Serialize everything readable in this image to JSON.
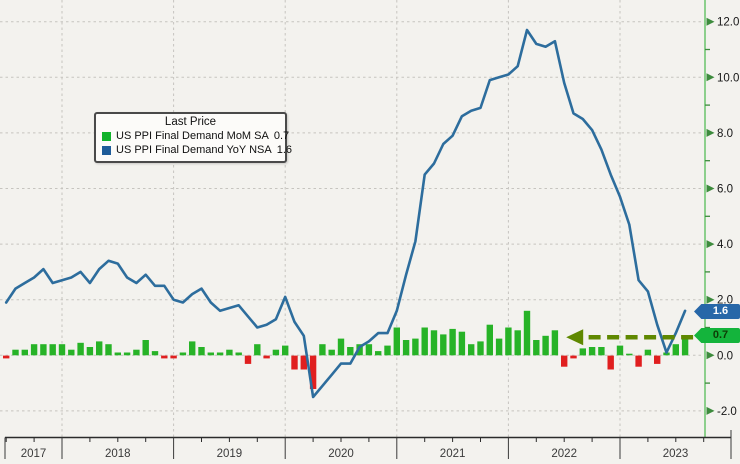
{
  "legend": {
    "title": "Last Price",
    "items": [
      {
        "label": "US PPI Final Demand MoM SA",
        "value": "0.7",
        "swatch": "#12b32c"
      },
      {
        "label": "US PPI Final Demand YoY NSA",
        "value": "1.6",
        "swatch": "#1f5c99"
      }
    ]
  },
  "tags": {
    "yoy": "1.6",
    "mom": "0.7"
  },
  "colors": {
    "background": "#f3f2ee",
    "bar_pos": "#27b327",
    "bar_neg": "#e01f1f",
    "line": "#2d6d9d",
    "arrow": "#5f8800",
    "tag_yoy_bg": "#2767a8",
    "tag_yoy_fg": "#ffffff",
    "tag_mom_bg": "#14b43c",
    "tag_mom_fg": "#0d3d05",
    "right_spine": "#8ccf8c",
    "right_tick": "#3d8b3d"
  },
  "chart_data": {
    "type": "combo",
    "x": {
      "months": [
        "2017-07",
        "2017-08",
        "2017-09",
        "2017-10",
        "2017-11",
        "2017-12",
        "2018-01",
        "2018-02",
        "2018-03",
        "2018-04",
        "2018-05",
        "2018-06",
        "2018-07",
        "2018-08",
        "2018-09",
        "2018-10",
        "2018-11",
        "2018-12",
        "2019-01",
        "2019-02",
        "2019-03",
        "2019-04",
        "2019-05",
        "2019-06",
        "2019-07",
        "2019-08",
        "2019-09",
        "2019-10",
        "2019-11",
        "2019-12",
        "2020-01",
        "2020-02",
        "2020-03",
        "2020-04",
        "2020-05",
        "2020-06",
        "2020-07",
        "2020-08",
        "2020-09",
        "2020-10",
        "2020-11",
        "2020-12",
        "2021-01",
        "2021-02",
        "2021-03",
        "2021-04",
        "2021-05",
        "2021-06",
        "2021-07",
        "2021-08",
        "2021-09",
        "2021-10",
        "2021-11",
        "2021-12",
        "2022-01",
        "2022-02",
        "2022-03",
        "2022-04",
        "2022-05",
        "2022-06",
        "2022-07",
        "2022-08",
        "2022-09",
        "2022-10",
        "2022-11",
        "2022-12",
        "2023-01",
        "2023-02",
        "2023-03",
        "2023-04",
        "2023-05",
        "2023-06",
        "2023-07",
        "2023-08"
      ]
    },
    "year_labels": [
      "2017",
      "2018",
      "2019",
      "2020",
      "2021",
      "2022",
      "2023"
    ],
    "y_axis": {
      "side": "right",
      "tick_values": [
        12,
        10,
        8,
        6,
        4,
        2,
        0,
        -2
      ],
      "tick_labels": [
        "12.0",
        "10.0",
        "8.0",
        "6.0",
        "4.0",
        "2.0",
        "0.0",
        "-2.0"
      ],
      "minor_tick_values": [
        11,
        9,
        7,
        5,
        3,
        1,
        -1
      ],
      "range": [
        -3,
        12.6
      ],
      "grid": "dashed"
    },
    "series": [
      {
        "name": "US PPI Final Demand MoM SA",
        "type": "bar",
        "last": 0.7,
        "values": [
          -0.1,
          0.2,
          0.2,
          0.4,
          0.4,
          0.4,
          0.4,
          0.2,
          0.45,
          0.3,
          0.5,
          0.4,
          0.1,
          0.1,
          0.2,
          0.55,
          0.15,
          -0.1,
          -0.1,
          0.1,
          0.5,
          0.3,
          0.1,
          0.1,
          0.2,
          0.1,
          -0.3,
          0.4,
          -0.1,
          0.2,
          0.35,
          -0.5,
          -0.5,
          -1.2,
          0.4,
          0.2,
          0.6,
          0.3,
          0.4,
          0.4,
          0.15,
          0.35,
          1.0,
          0.55,
          0.6,
          1.0,
          0.9,
          0.75,
          0.95,
          0.85,
          0.4,
          0.5,
          1.1,
          0.6,
          1.0,
          0.9,
          1.6,
          0.55,
          0.7,
          0.9,
          -0.4,
          -0.1,
          0.25,
          0.3,
          0.3,
          -0.5,
          0.35,
          0.0,
          -0.4,
          0.2,
          -0.3,
          0.1,
          0.4,
          0.7
        ]
      },
      {
        "name": "US PPI Final Demand YoY NSA",
        "type": "line",
        "last": 1.6,
        "values": [
          1.9,
          2.4,
          2.6,
          2.8,
          3.1,
          2.6,
          2.7,
          2.8,
          3.0,
          2.6,
          3.1,
          3.4,
          3.3,
          2.8,
          2.6,
          2.9,
          2.5,
          2.5,
          2.0,
          1.9,
          2.2,
          2.4,
          1.9,
          1.6,
          1.7,
          1.8,
          1.4,
          1.0,
          1.1,
          1.3,
          2.1,
          1.2,
          0.7,
          -1.5,
          -1.1,
          -0.7,
          -0.3,
          -0.3,
          0.3,
          0.5,
          0.8,
          0.8,
          1.6,
          2.9,
          4.1,
          6.5,
          6.9,
          7.6,
          7.9,
          8.6,
          8.8,
          8.9,
          9.9,
          10.0,
          10.1,
          10.4,
          11.7,
          11.2,
          11.1,
          11.3,
          9.8,
          8.7,
          8.5,
          8.1,
          7.4,
          6.5,
          5.7,
          4.7,
          2.7,
          2.3,
          1.1,
          0.1,
          0.8,
          1.6
        ]
      }
    ],
    "annotation": {
      "shape": "dashed-arrow-left",
      "value": 0.65,
      "from_month": "2023-08",
      "to_month": "2022-07"
    }
  }
}
